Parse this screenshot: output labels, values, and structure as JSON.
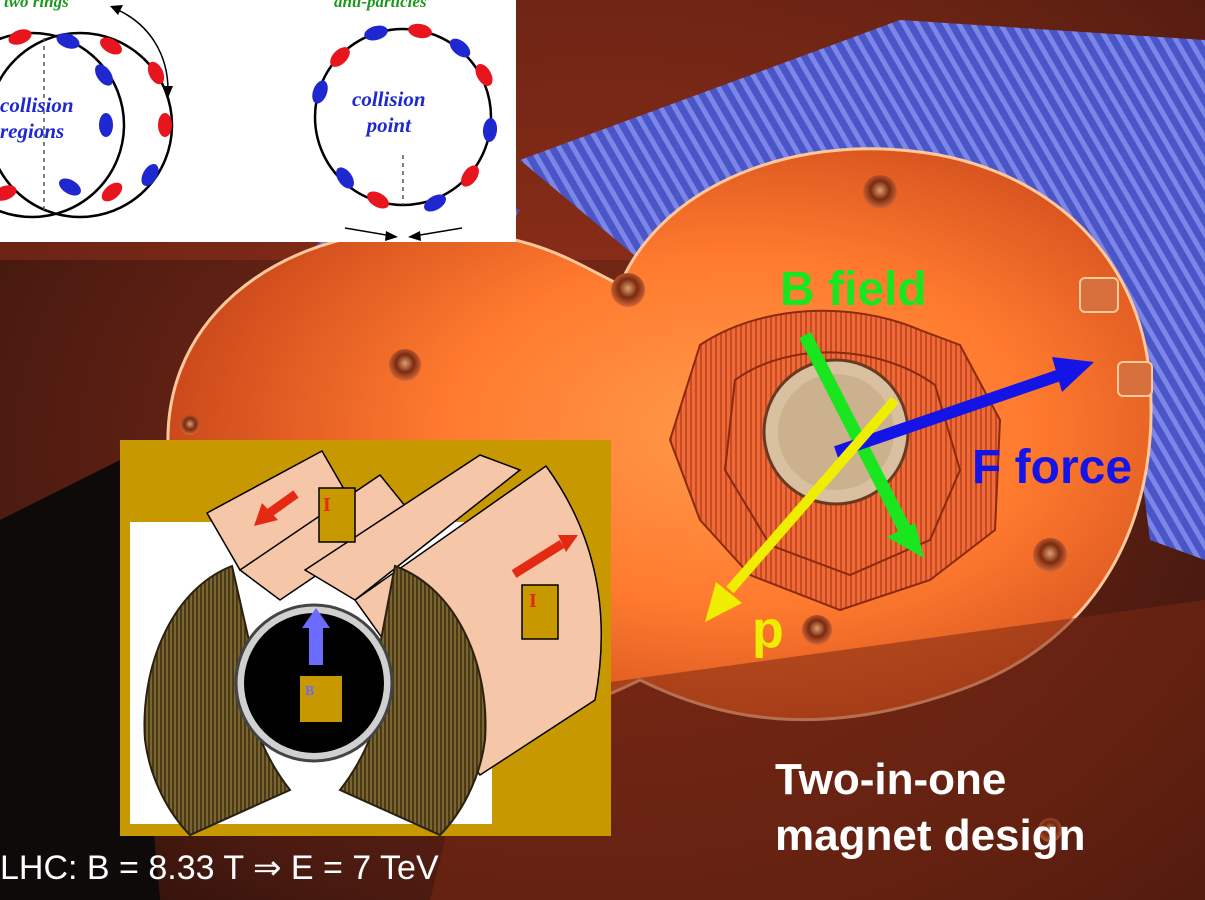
{
  "image_label": "Two-in-one magnet design",
  "colors": {
    "b_field": "#19e61e",
    "f_force": "#1414e6",
    "p_arrow": "#f0ee00",
    "caption": "#ffffff",
    "inset_bg": "#c79800",
    "current_arrow": "#e52a14",
    "b_arrow": "#6b6bff",
    "ring_blue": "#1f28d0",
    "ring_red": "#e8141e",
    "label_green": "#1a9a1a"
  },
  "arrows": {
    "b_field": "B field",
    "f_force": "F force",
    "p": "p"
  },
  "caption": {
    "line1": "Two-in-one",
    "line2": "magnet design"
  },
  "bottom_equation": "LHC: B = 8.33 T ⇒ E = 7 TeV",
  "top_inset": {
    "left_title": "two rings",
    "right_title": "anti-particles",
    "left_label_line1": "collision",
    "left_label_line2": "regions",
    "right_label_line1": "collision",
    "right_label_line2": "point"
  },
  "magnet_inset": {
    "current_label_1": "I",
    "current_label_2": "I",
    "field_label": "B"
  }
}
